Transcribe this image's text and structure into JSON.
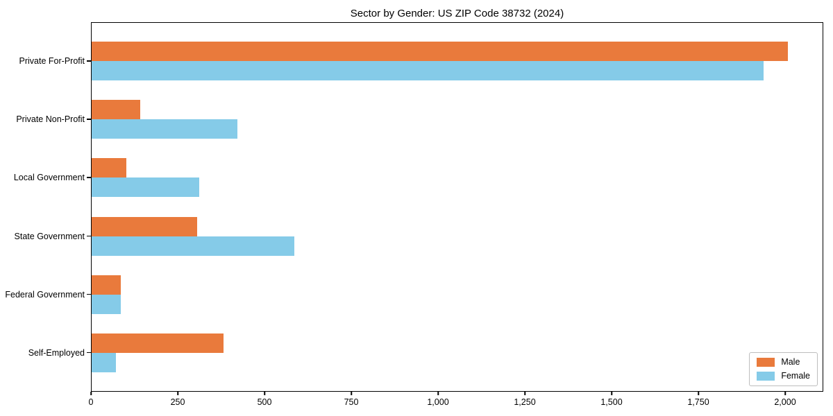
{
  "figure": {
    "title": "Sector by Gender: US ZIP Code 38732 (2024)"
  },
  "chart_data": {
    "type": "bar",
    "orientation": "horizontal",
    "title": "Sector by Gender: US ZIP Code 38732 (2024)",
    "categories": [
      "Private For-Profit",
      "Private Non-Profit",
      "Local Government",
      "State Government",
      "Federal Government",
      "Self-Employed"
    ],
    "series": [
      {
        "name": "Male",
        "color": "#e97a3c",
        "values": [
          2010,
          140,
          100,
          305,
          85,
          380
        ]
      },
      {
        "name": "Female",
        "color": "#85cbe8",
        "values": [
          1940,
          420,
          310,
          585,
          85,
          70
        ]
      }
    ],
    "xlabel": "",
    "ylabel": "",
    "xlim": [
      0,
      2110
    ],
    "x_ticks": [
      0,
      250,
      500,
      750,
      1000,
      1250,
      1500,
      1750,
      2000
    ],
    "x_tick_labels": [
      "0",
      "250",
      "500",
      "750",
      "1,000",
      "1,250",
      "1,500",
      "1,750",
      "2,000"
    ],
    "grid": false,
    "axis_color": "#000000",
    "background_color": "#ffffff",
    "legend": {
      "position": "lower right",
      "entries": [
        "Male",
        "Female"
      ]
    }
  }
}
